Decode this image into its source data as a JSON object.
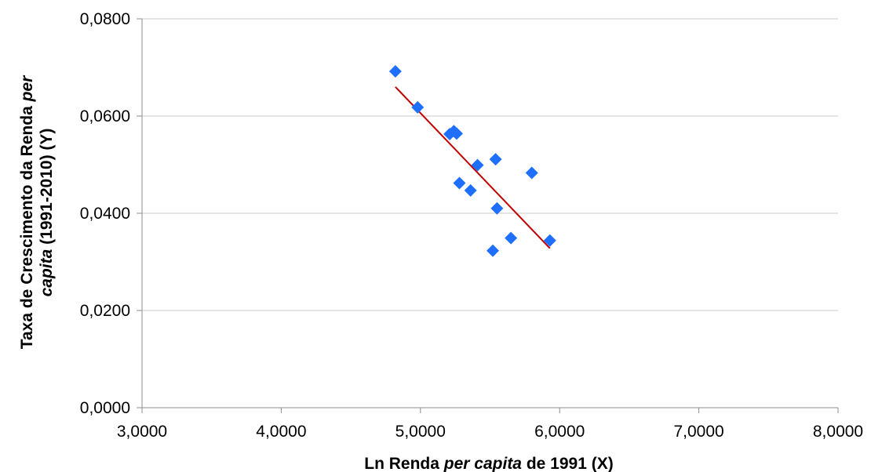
{
  "chart_data": {
    "type": "scatter",
    "title": "",
    "xlabel": {
      "prefix": "Ln Renda ",
      "italic": "per capita",
      "suffix": " de 1991 (X)"
    },
    "ylabel": {
      "line1_prefix": "Taxa de Crescimento da Renda ",
      "line1_italic": "per",
      "line2_italic": "capita",
      "line2_suffix": " (1991-2010) (Y)"
    },
    "xlim": [
      3.0,
      8.0
    ],
    "ylim": [
      0.0,
      0.08
    ],
    "x_ticks": [
      3.0,
      4.0,
      5.0,
      6.0,
      7.0,
      8.0
    ],
    "x_tick_labels": [
      "3,0000",
      "4,0000",
      "5,0000",
      "6,0000",
      "7,0000",
      "8,0000"
    ],
    "y_ticks": [
      0.0,
      0.02,
      0.04,
      0.06,
      0.08
    ],
    "y_tick_labels": [
      "0,0000",
      "0,0200",
      "0,0400",
      "0,0600",
      "0,0800"
    ],
    "grid": true,
    "legend": "none",
    "colors": {
      "points": "#1f6fff",
      "trendline": "#c00000",
      "grid": "#c8c8c8",
      "axis": "#8c8c8c"
    },
    "series": [
      {
        "marker": "diamond",
        "points": [
          {
            "x": 4.82,
            "y": 0.0692
          },
          {
            "x": 4.98,
            "y": 0.0618
          },
          {
            "x": 5.21,
            "y": 0.0563
          },
          {
            "x": 5.24,
            "y": 0.0569
          },
          {
            "x": 5.26,
            "y": 0.0564
          },
          {
            "x": 5.28,
            "y": 0.0462
          },
          {
            "x": 5.36,
            "y": 0.0447
          },
          {
            "x": 5.41,
            "y": 0.0499
          },
          {
            "x": 5.52,
            "y": 0.0323
          },
          {
            "x": 5.54,
            "y": 0.0511
          },
          {
            "x": 5.55,
            "y": 0.041
          },
          {
            "x": 5.65,
            "y": 0.0349
          },
          {
            "x": 5.8,
            "y": 0.0483
          },
          {
            "x": 5.93,
            "y": 0.0344
          }
        ]
      }
    ],
    "trendline": {
      "x": [
        4.82,
        5.93
      ],
      "y": [
        0.066,
        0.0328
      ]
    }
  }
}
